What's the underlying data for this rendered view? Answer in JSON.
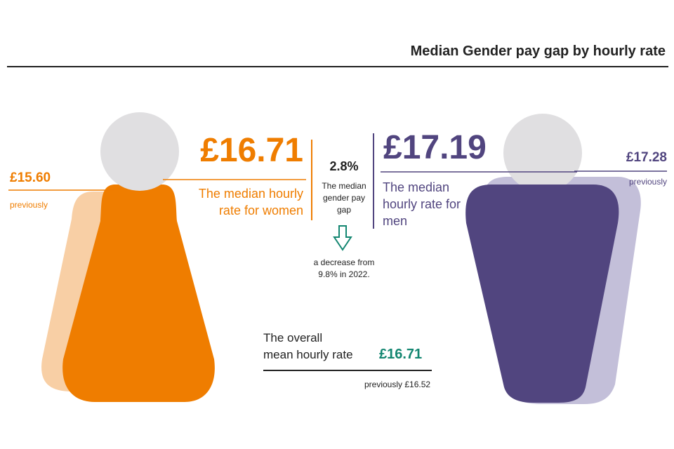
{
  "title": "Median Gender pay gap by hourly rate",
  "colors": {
    "women": "#ef7d00",
    "women_previous": "#f8cfa5",
    "men": "#51457f",
    "men_previous": "#c3bfd9",
    "head": "#e0dfe1",
    "accent": "#138671",
    "text": "#222222"
  },
  "women": {
    "value": "£16.71",
    "caption_line1": "The median hourly",
    "caption_line2": "rate for women",
    "previous_value": "£15.60",
    "previous_label": "previously"
  },
  "gap": {
    "value": "2.8%",
    "caption_line1": "The median",
    "caption_line2": "gender pay",
    "caption_line3": "gap",
    "arrow_icon": "down-arrow-icon",
    "note_line1": "a decrease from",
    "note_line2": "9.8% in 2022."
  },
  "men": {
    "value": "£17.19",
    "caption_line1": "The median",
    "caption_line2": "hourly rate for",
    "caption_line3": "men",
    "previous_value": "£17.28",
    "previous_label": "previously"
  },
  "overall": {
    "caption_line1": "The overall",
    "caption_line2": "mean hourly rate",
    "value": "£16.71",
    "previous": "previously £16.52"
  }
}
